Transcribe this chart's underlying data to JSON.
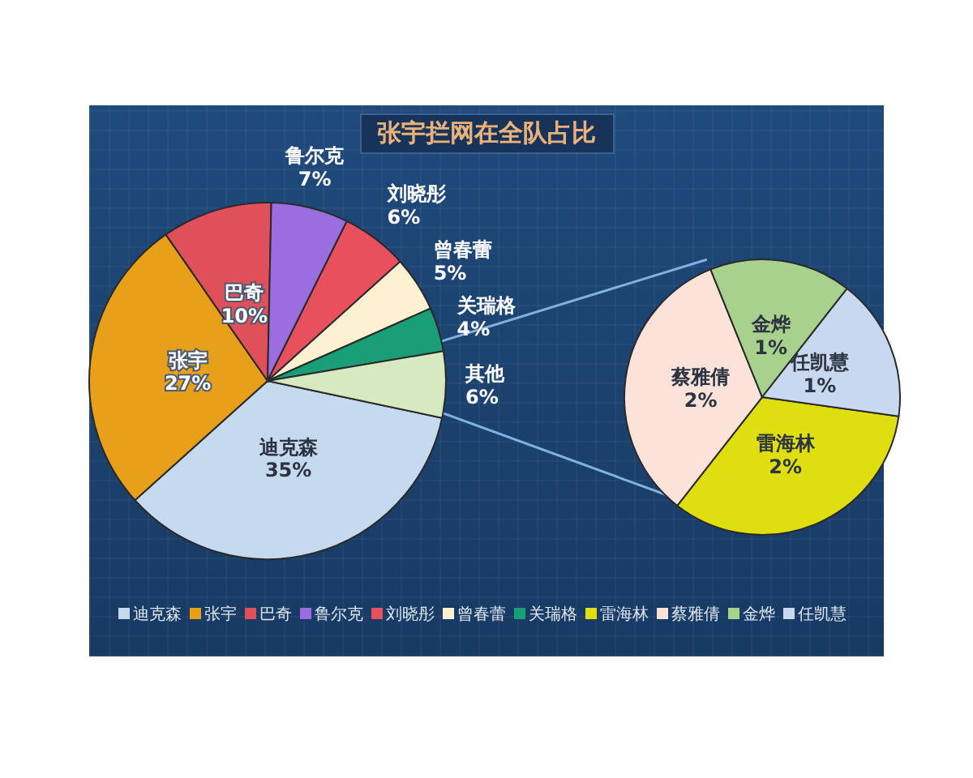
{
  "chart_data": [
    {
      "type": "pie",
      "title": "张宇拦网在全队占比",
      "categories": [
        "迪克森",
        "张宇",
        "巴奇",
        "鲁尔克",
        "刘晓彤",
        "曾春蕾",
        "关瑞格",
        "其他"
      ],
      "values": [
        35,
        27,
        10,
        7,
        6,
        5,
        4,
        6
      ],
      "value_labels": [
        "35%",
        "27%",
        "10%",
        "7%",
        "6%",
        "5%",
        "4%",
        "6%"
      ],
      "colors": [
        "#c5d9ef",
        "#e8a01a",
        "#e0505a",
        "#9b6ee0",
        "#e8505e",
        "#fdf1d2",
        "#1a9e78",
        "#d6e9c0"
      ],
      "legend": "bottom"
    },
    {
      "type": "pie",
      "categories": [
        "雷海林",
        "蔡雅倩",
        "金烨",
        "任凯慧"
      ],
      "values": [
        2,
        2,
        1,
        1
      ],
      "value_labels": [
        "2%",
        "2%",
        "1%",
        "1%"
      ],
      "colors": [
        "#dede10",
        "#fbe3da",
        "#a9d18e",
        "#c8d8f0"
      ],
      "legend": "bottom"
    }
  ]
}
